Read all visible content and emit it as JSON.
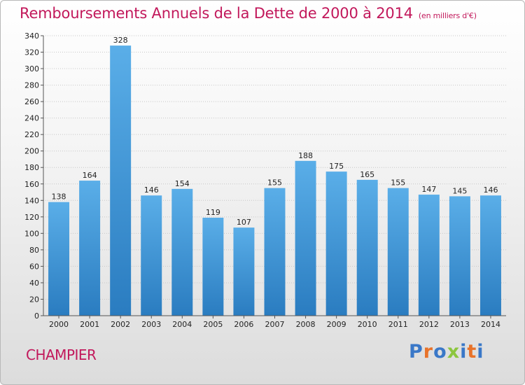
{
  "chart_data": {
    "type": "bar",
    "title": "Remboursements Annuels de la Dette de 2000 à 2014",
    "unit_label": "(en milliers d'€)",
    "categories": [
      "2000",
      "2001",
      "2002",
      "2003",
      "2004",
      "2005",
      "2006",
      "2007",
      "2008",
      "2009",
      "2010",
      "2011",
      "2012",
      "2013",
      "2014"
    ],
    "values": [
      138,
      164,
      328,
      146,
      154,
      119,
      107,
      155,
      188,
      175,
      165,
      155,
      147,
      145,
      146
    ],
    "ylim": [
      0,
      340
    ],
    "yticks": [
      0,
      20,
      40,
      60,
      80,
      100,
      120,
      140,
      160,
      180,
      200,
      220,
      240,
      260,
      280,
      300,
      320,
      340
    ],
    "grid": true,
    "colors": {
      "bar_top": "#5aaee8",
      "bar_bottom": "#2a7cc0",
      "title": "#c2185b"
    }
  },
  "footer": {
    "town": "CHAMPIER",
    "logo_letters": [
      "P",
      "r",
      "o",
      "x",
      "i",
      "t",
      "i"
    ],
    "logo_colors": [
      "#3a78c8",
      "#e8732a",
      "#3a78c8",
      "#8cc63e",
      "#3a78c8",
      "#e8732a",
      "#3a78c8"
    ]
  }
}
